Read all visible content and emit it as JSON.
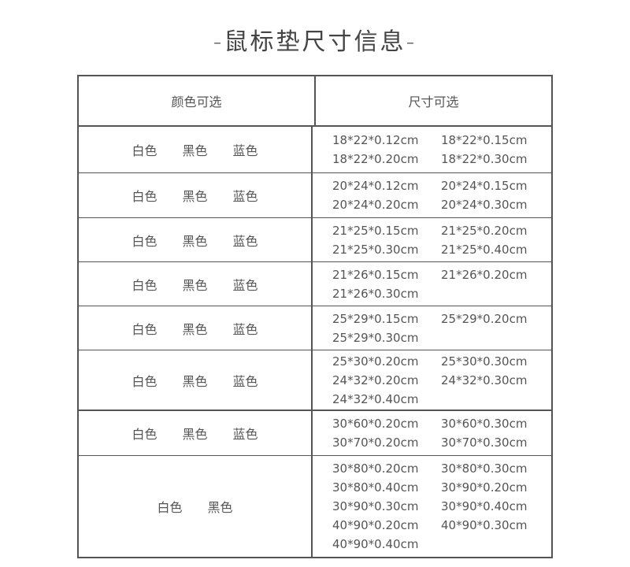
{
  "title": "-鼠标垫尺寸信息-",
  "header": {
    "colors": "颜色可选",
    "sizes": "尺寸可选"
  },
  "rows": [
    {
      "colors": [
        "白色",
        "黑色",
        "蓝色"
      ],
      "sizes": [
        "18*22*0.12cm",
        "18*22*0.15cm",
        "18*22*0.20cm",
        "18*22*0.30cm"
      ]
    },
    {
      "colors": [
        "白色",
        "黑色",
        "蓝色"
      ],
      "sizes": [
        "20*24*0.12cm",
        "20*24*0.15cm",
        "20*24*0.20cm",
        "20*24*0.30cm"
      ]
    },
    {
      "colors": [
        "白色",
        "黑色",
        "蓝色"
      ],
      "sizes": [
        "21*25*0.15cm",
        "21*25*0.20cm",
        "21*25*0.30cm",
        "21*25*0.40cm"
      ]
    },
    {
      "colors": [
        "白色",
        "黑色",
        "蓝色"
      ],
      "sizes": [
        "21*26*0.15cm",
        "21*26*0.20cm",
        "21*26*0.30cm"
      ]
    },
    {
      "colors": [
        "白色",
        "黑色",
        "蓝色"
      ],
      "sizes": [
        "25*29*0.15cm",
        "25*29*0.20cm",
        "25*29*0.30cm"
      ]
    },
    {
      "colors": [
        "白色",
        "黑色",
        "蓝色"
      ],
      "sizes": [
        "25*30*0.20cm",
        "25*30*0.30cm",
        "24*32*0.20cm",
        "24*32*0.30cm",
        "24*32*0.40cm"
      ]
    },
    {
      "colors": [
        "白色",
        "黑色",
        "蓝色"
      ],
      "sizes": [
        "30*60*0.20cm",
        "30*60*0.30cm",
        "30*70*0.20cm",
        "30*70*0.30cm"
      ]
    },
    {
      "colors": [
        "白色",
        "黑色"
      ],
      "sizes": [
        "30*80*0.20cm",
        "30*80*0.30cm",
        "30*80*0.40cm",
        "30*90*0.20cm",
        "30*90*0.30cm",
        "30*90*0.40cm",
        "40*90*0.20cm",
        "40*90*0.30cm",
        "40*90*0.40cm"
      ]
    }
  ]
}
